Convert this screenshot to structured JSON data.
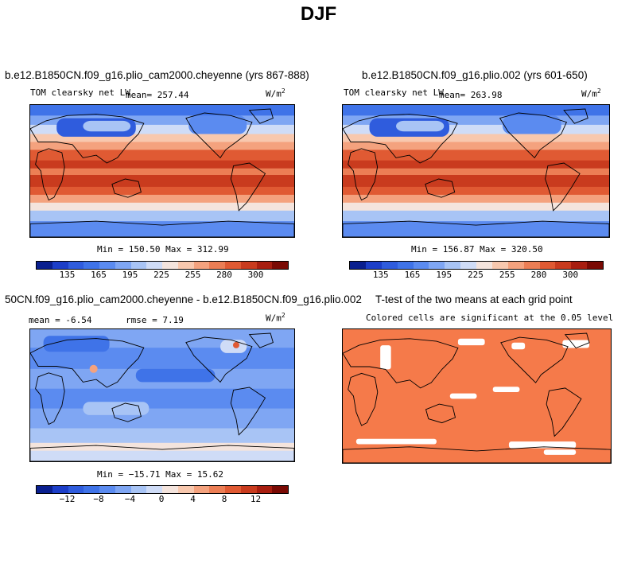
{
  "figure_title": "DJF",
  "colors": {
    "seq": [
      "#0a1f8f",
      "#1c3ec8",
      "#2f5cdd",
      "#3f73e8",
      "#5b8bf0",
      "#7fa6f3",
      "#a8c4f5",
      "#cfdcf7",
      "#f4e4dd",
      "#f8c8ae",
      "#f4a27e",
      "#ec7e55",
      "#e05a33",
      "#c93b1e",
      "#a81e10",
      "#7a0a04"
    ],
    "diff": [
      "#0a1f8f",
      "#1c3ec8",
      "#2f5cdd",
      "#3f73e8",
      "#5b8bf0",
      "#7fa6f3",
      "#a8c4f5",
      "#cfdcf7",
      "#f4e4dd",
      "#f8c8ae",
      "#f4a27e",
      "#ec7e55",
      "#e05a33",
      "#c93b1e",
      "#a81e10",
      "#7a0a04"
    ],
    "significant": "#f57a4a"
  },
  "chart_data": [
    {
      "type": "heatmap",
      "title": "b.e12.B1850CN.f09_g16.plio_cam2000.cheyenne (yrs 867-888)",
      "variable": "TOM clearsky net LW",
      "units": "W/m",
      "units_exp": "2",
      "mean_label": "mean=",
      "mean": "257.44",
      "min_label": "Min =",
      "min": "150.50",
      "max_label": "Max =",
      "max": "312.99",
      "colorbar_ticks": [
        "135",
        "165",
        "195",
        "225",
        "255",
        "280",
        "300"
      ]
    },
    {
      "type": "heatmap",
      "title": "b.e12.B1850CN.f09_g16.plio.002 (yrs 601-650)",
      "variable": "TOM clearsky net LW",
      "units": "W/m",
      "units_exp": "2",
      "mean_label": "mean=",
      "mean": "263.98",
      "min_label": "Min =",
      "min": "156.87",
      "max_label": "Max =",
      "max": "320.50",
      "colorbar_ticks": [
        "135",
        "165",
        "195",
        "225",
        "255",
        "280",
        "300"
      ]
    },
    {
      "type": "heatmap",
      "title": "50CN.f09_g16.plio_cam2000.cheyenne - b.e12.B1850CN.f09_g16.plio.002",
      "mean_label": "mean =",
      "mean": "-6.54",
      "rmse_label": "rmse =",
      "rmse": "7.19",
      "units": "W/m",
      "units_exp": "2",
      "min_label": "Min =",
      "min": "−15.71",
      "max_label": "Max =",
      "max": "15.62",
      "colorbar_ticks": [
        "−12",
        "−8",
        "−4",
        "0",
        "4",
        "8",
        "12"
      ]
    },
    {
      "type": "heatmap",
      "title": "T-test of the two means at each grid point",
      "subtitle": "Colored cells are significant at the 0.05 level"
    }
  ]
}
